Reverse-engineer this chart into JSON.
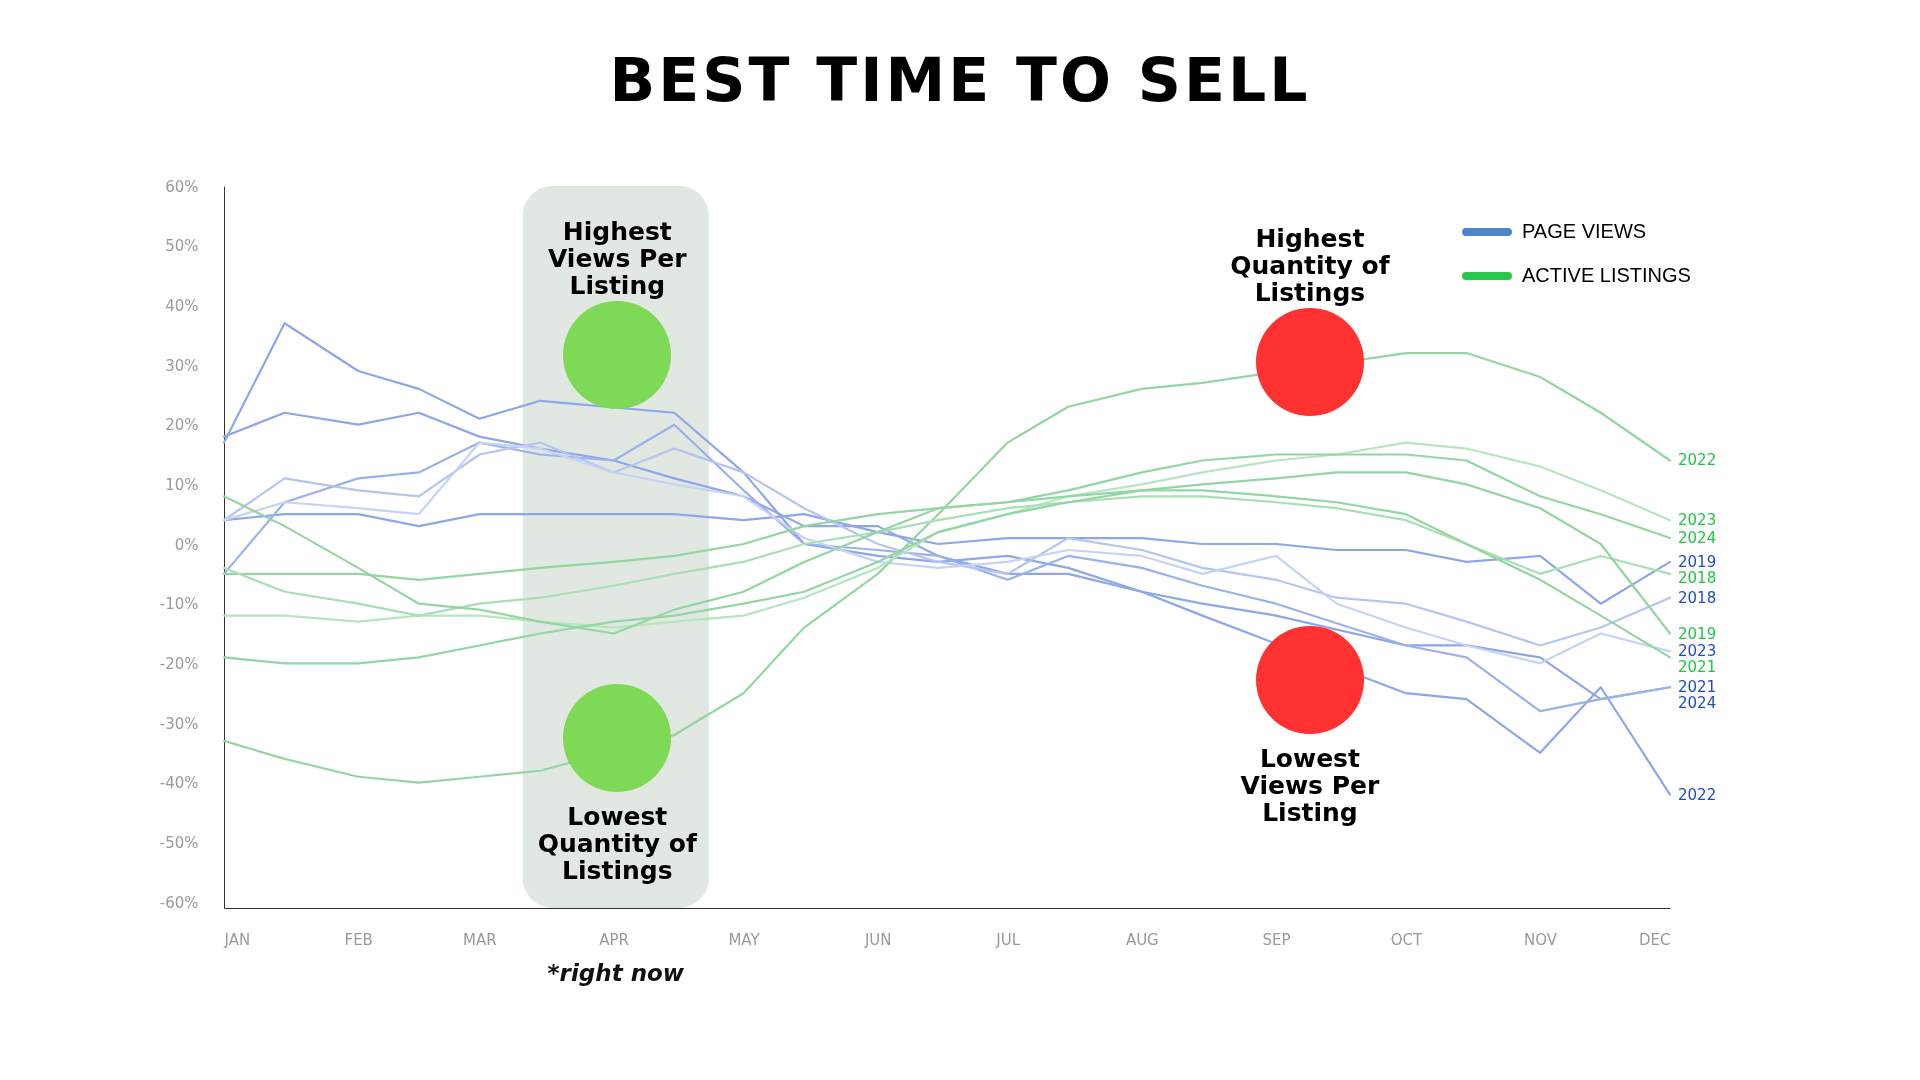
{
  "chart_data": {
    "type": "line",
    "title": "BEST TIME TO SELL",
    "x": [
      "--01-01",
      "--01-15",
      "--02-01",
      "--02-15",
      "--03-01",
      "--03-15",
      "--04-01",
      "--04-15",
      "--05-01",
      "--05-15",
      "--06-01",
      "--06-15",
      "--07-01",
      "--07-15",
      "--08-01",
      "--08-15",
      "--09-01",
      "--09-15",
      "--10-01",
      "--10-15",
      "--11-01",
      "--11-15",
      "--12-01"
    ],
    "series": [
      {
        "name": "2022",
        "color": "#8ea6ea",
        "values": [
          17,
          37,
          29,
          26,
          21,
          24,
          null,
          22,
          12,
          0,
          -2,
          -3,
          -2,
          -4,
          -8,
          -12,
          null,
          null,
          -25,
          -26,
          -35,
          -24,
          -42
        ]
      },
      {
        "name": "2021",
        "color": "#8ea6ea",
        "values": [
          18,
          22,
          20,
          22,
          18,
          16,
          14,
          11,
          8,
          3,
          3,
          -2,
          -5,
          -5,
          -8,
          -10,
          -12,
          null,
          -17,
          -17,
          -19,
          -26,
          -24
        ]
      },
      {
        "name": "2019",
        "color": "#8ea6ea",
        "values": [
          4,
          5,
          5,
          3,
          5,
          5,
          5,
          5,
          4,
          5,
          2,
          0,
          1,
          1,
          1,
          0,
          0,
          -1,
          -1,
          -3,
          -2,
          -10,
          -3
        ]
      },
      {
        "name": "2024",
        "color": "#9bb1ec",
        "values": [
          -5,
          7,
          11,
          12,
          17,
          15,
          14,
          20,
          9,
          0,
          -1,
          -2,
          -6,
          -2,
          -4,
          -7,
          -10,
          null,
          -17,
          -19,
          -28,
          -26,
          -24
        ]
      },
      {
        "name": "2018",
        "color": "#b5c5f0",
        "values": [
          4,
          11,
          9,
          8,
          15,
          17,
          12,
          16,
          12,
          6,
          0,
          -3,
          -5,
          1,
          -1,
          -4,
          -6,
          -9,
          -10,
          -13,
          -17,
          -14,
          -9
        ]
      },
      {
        "name": "2023",
        "color": "#c6d3f4",
        "values": [
          4,
          7,
          6,
          5,
          17,
          16,
          12,
          10,
          8,
          1,
          -3,
          -4,
          -3,
          -1,
          -2,
          -5,
          -2,
          -10,
          -14,
          -17,
          -20,
          -15,
          -18
        ]
      },
      {
        "name": "2022",
        "color": "#94d6a3",
        "values": [
          -33,
          -36,
          -39,
          -40,
          -39,
          -38,
          null,
          -32,
          -25,
          -14,
          -5,
          5,
          17,
          23,
          26,
          27,
          null,
          null,
          32,
          32,
          28,
          22,
          14
        ]
      },
      {
        "name": "2023",
        "color": "#b6e5c0",
        "values": [
          -12,
          -12,
          -13,
          -12,
          -12,
          -13,
          -14,
          -13,
          -12,
          -9,
          -4,
          2,
          5,
          8,
          10,
          12,
          14,
          15,
          17,
          16,
          13,
          9,
          4
        ]
      },
      {
        "name": "2024",
        "color": "#94d6a3",
        "values": [
          -5,
          -5,
          -5,
          -6,
          -5,
          -4,
          -3,
          -2,
          0,
          3,
          5,
          6,
          7,
          9,
          12,
          14,
          15,
          15,
          15,
          14,
          8,
          5,
          1
        ]
      },
      {
        "name": "2018",
        "color": "#a9dfb5",
        "values": [
          -4,
          -8,
          -10,
          -12,
          -10,
          -9,
          -7,
          -5,
          -3,
          0,
          2,
          4,
          6,
          7,
          8,
          8,
          7,
          6,
          4,
          0,
          -5,
          -2,
          -5
        ]
      },
      {
        "name": "2019",
        "color": "#94d6a3",
        "values": [
          -19,
          -20,
          -20,
          -19,
          -17,
          -15,
          -13,
          -12,
          -10,
          -8,
          -3,
          2,
          5,
          7,
          9,
          10,
          11,
          12,
          12,
          10,
          6,
          0,
          -15
        ]
      },
      {
        "name": "2021",
        "color": "#94d6a3",
        "values": [
          8,
          3,
          -4,
          -10,
          -11,
          -13,
          -15,
          -11,
          -8,
          -3,
          2,
          6,
          7,
          8,
          9,
          9,
          8,
          7,
          5,
          0,
          -6,
          -12,
          -19
        ]
      }
    ],
    "xlim": [
      "--01-01",
      "--12-01"
    ],
    "xticks": [
      {
        "value": "--01-01",
        "label": "JAN"
      },
      {
        "value": "--02-01",
        "label": "FEB"
      },
      {
        "value": "--03-01",
        "label": "MAR"
      },
      {
        "value": "--04-01",
        "label": "APR"
      },
      {
        "value": "--05-01",
        "label": "MAY"
      },
      {
        "value": "--06-01",
        "label": "JUN"
      },
      {
        "value": "--07-01",
        "label": "JUL"
      },
      {
        "value": "--08-01",
        "label": "AUG"
      },
      {
        "value": "--09-01",
        "label": "SEP"
      },
      {
        "value": "--10-01",
        "label": "OCT"
      },
      {
        "value": "--11-01",
        "label": "NOV"
      },
      {
        "value": "--12-01",
        "label": "DEC"
      }
    ],
    "ylim": [
      -61,
      60
    ],
    "yticks": [
      {
        "value": -60,
        "label": "-60%"
      },
      {
        "value": -50,
        "label": "-50%"
      },
      {
        "value": -40,
        "label": "-40%"
      },
      {
        "value": -30,
        "label": "-30%"
      },
      {
        "value": -20,
        "label": "-20%"
      },
      {
        "value": -10,
        "label": "-10%"
      },
      {
        "value": 0,
        "label": "0%"
      },
      {
        "value": 10,
        "label": "10%"
      },
      {
        "value": 20,
        "label": "20%"
      },
      {
        "value": 30,
        "label": "30%"
      },
      {
        "value": 40,
        "label": "40%"
      },
      {
        "value": 50,
        "label": "50%"
      },
      {
        "value": 60,
        "label": "60%"
      }
    ],
    "bands": [
      {
        "axis": "x",
        "from": "--03-11",
        "to": "--04-23",
        "label": "*right now",
        "color": "#e1e8e1"
      }
    ],
    "annotations": [
      "Highest Views Per Listing",
      "Lowest Quantity of Listings",
      "Highest Quantity of Listings",
      "Lowest Views Per Listing",
      "PAGE VIEWS",
      "ACTIVE LISTINGS"
    ],
    "grid": false
  }
}
